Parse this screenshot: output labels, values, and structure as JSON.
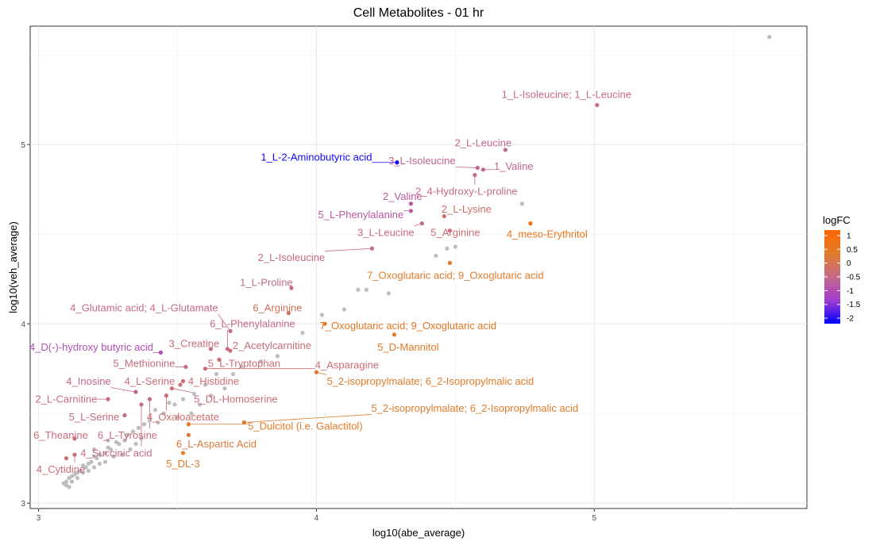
{
  "chart_data": {
    "type": "scatter",
    "title": "Cell Metabolites - 01 hr",
    "xlabel": "log10(abe_average)",
    "ylabel": "log10(veh_average)",
    "xlim": [
      2.97,
      5.765
    ],
    "ylim": [
      2.97,
      5.66
    ],
    "x_ticks": [
      3,
      4,
      5
    ],
    "y_ticks": [
      3,
      4,
      5
    ],
    "grid": true,
    "legend": {
      "title": "logFC",
      "position": "right",
      "range": [
        -2.2,
        1.2
      ],
      "ticks": [
        1,
        0.5,
        0,
        -0.5,
        -1,
        -1.5,
        -2
      ],
      "tick_labels": [
        "1",
        "0.5",
        "0",
        "-0.5",
        "-1",
        "-1.5",
        "-2"
      ],
      "colors": [
        "#0000ff",
        "#a23bd0",
        "#c46a8a",
        "#e07c2a",
        "#ff6600"
      ]
    },
    "labeled_points": [
      {
        "label": "1_L-Isoleucine; 1_L-Leucine",
        "x": 5.01,
        "y": 5.22,
        "logFC": -0.45,
        "lx": 4.9,
        "ly": 5.28
      },
      {
        "label": "2_L-Leucine",
        "x": 4.68,
        "y": 4.97,
        "logFC": -0.55,
        "lx": 4.6,
        "ly": 5.01
      },
      {
        "label": "1_L-2-Aminobutyric acid",
        "x": 4.29,
        "y": 4.9,
        "logFC": -2.1,
        "lx": 4.0,
        "ly": 4.93
      },
      {
        "label": "3_L-Isoleucine",
        "x": 4.58,
        "y": 4.87,
        "logFC": -0.6,
        "lx": 4.38,
        "ly": 4.91
      },
      {
        "label": "1_Valine",
        "x": 4.6,
        "y": 4.86,
        "logFC": -0.55,
        "lx": 4.71,
        "ly": 4.88
      },
      {
        "label": "2_4-Hydroxy-L-proline",
        "x": 4.57,
        "y": 4.83,
        "logFC": -0.5,
        "lx": 4.54,
        "ly": 4.74
      },
      {
        "label": "2_Valine",
        "x": 4.34,
        "y": 4.67,
        "logFC": -0.8,
        "lx": 4.31,
        "ly": 4.71
      },
      {
        "label": "5_L-Phenylalanine",
        "x": 4.34,
        "y": 4.63,
        "logFC": -0.8,
        "lx": 4.16,
        "ly": 4.61
      },
      {
        "label": "2_L-Lysine",
        "x": 4.46,
        "y": 4.6,
        "logFC": -0.2,
        "lx": 4.54,
        "ly": 4.64
      },
      {
        "label": "4_meso-Erythritol",
        "x": 4.77,
        "y": 4.56,
        "logFC": 0.7,
        "lx": 4.83,
        "ly": 4.5
      },
      {
        "label": "3_L-Leucine",
        "x": 4.38,
        "y": 4.56,
        "logFC": -0.4,
        "lx": 4.25,
        "ly": 4.51
      },
      {
        "label": "5_Arginine",
        "x": 4.48,
        "y": 4.52,
        "logFC": -0.3,
        "lx": 4.5,
        "ly": 4.51
      },
      {
        "label": "2_L-Isoleucine",
        "x": 4.2,
        "y": 4.42,
        "logFC": -0.4,
        "lx": 3.91,
        "ly": 4.37
      },
      {
        "label": "7_Oxoglutaric acid; 9_Oxoglutaric acid",
        "x": 4.48,
        "y": 4.34,
        "logFC": 0.4,
        "lx": 4.5,
        "ly": 4.27
      },
      {
        "label": "1_L-Proline",
        "x": 3.91,
        "y": 4.2,
        "logFC": -0.5,
        "lx": 3.82,
        "ly": 4.23
      },
      {
        "label": "4_Glutamic acid; 4_L-Glutamate",
        "x": 3.69,
        "y": 3.96,
        "logFC": -0.45,
        "lx": 3.38,
        "ly": 4.09
      },
      {
        "label": "6_Arginine",
        "x": 3.9,
        "y": 4.06,
        "logFC": -0.1,
        "lx": 3.86,
        "ly": 4.09
      },
      {
        "label": "6_L-Phenylalanine",
        "x": 3.68,
        "y": 3.86,
        "logFC": -0.45,
        "lx": 3.77,
        "ly": 4.0
      },
      {
        "label": "7_Oxoglutaric acid; 9_Oxoglutaric acid",
        "x": 4.03,
        "y": 4.0,
        "logFC": 0.5,
        "lx": 4.33,
        "ly": 3.99
      },
      {
        "label": "5_D-Mannitol",
        "x": 4.28,
        "y": 3.94,
        "logFC": 0.4,
        "lx": 4.33,
        "ly": 3.87
      },
      {
        "label": "4_D(-)-hydroxy butyric acid",
        "x": 3.44,
        "y": 3.84,
        "logFC": -1.0,
        "lx": 3.19,
        "ly": 3.87
      },
      {
        "label": "3_Creatine",
        "x": 3.62,
        "y": 3.86,
        "logFC": -0.35,
        "lx": 3.56,
        "ly": 3.89
      },
      {
        "label": "2_Acetylcarnitine",
        "x": 3.69,
        "y": 3.85,
        "logFC": -0.35,
        "lx": 3.84,
        "ly": 3.88
      },
      {
        "label": "5_Methionine",
        "x": 3.53,
        "y": 3.76,
        "logFC": -0.4,
        "lx": 3.38,
        "ly": 3.78
      },
      {
        "label": "5_L-Tryptophan",
        "x": 3.65,
        "y": 3.8,
        "logFC": -0.3,
        "lx": 3.74,
        "ly": 3.78
      },
      {
        "label": "4_Asparagine",
        "x": 3.6,
        "y": 3.75,
        "logFC": -0.3,
        "lx": 4.11,
        "ly": 3.77
      },
      {
        "label": "5_2-isopropylmalate; 6_2-Isopropylmalic acid",
        "x": 4.0,
        "y": 3.73,
        "logFC": 0.35,
        "lx": 4.41,
        "ly": 3.68
      },
      {
        "label": "4_Inosine",
        "x": 3.35,
        "y": 3.62,
        "logFC": -0.6,
        "lx": 3.18,
        "ly": 3.68
      },
      {
        "label": "4_L-Serine",
        "x": 3.51,
        "y": 3.66,
        "logFC": -0.35,
        "lx": 3.4,
        "ly": 3.68
      },
      {
        "label": "4_Histidine",
        "x": 3.52,
        "y": 3.68,
        "logFC": -0.3,
        "lx": 3.63,
        "ly": 3.68
      },
      {
        "label": "2_L-Carnitine",
        "x": 3.25,
        "y": 3.58,
        "logFC": -0.4,
        "lx": 3.1,
        "ly": 3.58
      },
      {
        "label": "5_DL-Homoserine",
        "x": 3.48,
        "y": 3.64,
        "logFC": -0.35,
        "lx": 3.71,
        "ly": 3.58
      },
      {
        "label": "5_2-isopropylmalate; 6_2-Isopropylmalic acid",
        "x": 3.74,
        "y": 3.45,
        "logFC": 0.35,
        "lx": 4.57,
        "ly": 3.53
      },
      {
        "label": "5_L-Serine",
        "x": 3.31,
        "y": 3.49,
        "logFC": -0.4,
        "lx": 3.2,
        "ly": 3.48
      },
      {
        "label": "4_Oxaloacetate",
        "x": 3.46,
        "y": 3.6,
        "logFC": -0.25,
        "lx": 3.52,
        "ly": 3.48
      },
      {
        "label": "5_Dulcitol (i.e. Galactitol)",
        "x": 3.54,
        "y": 3.44,
        "logFC": 0.4,
        "lx": 3.96,
        "ly": 3.43
      },
      {
        "label": "6_Theanine",
        "x": 3.13,
        "y": 3.36,
        "logFC": -0.35,
        "lx": 3.08,
        "ly": 3.38
      },
      {
        "label": "6_L-Tyrosine",
        "x": 3.4,
        "y": 3.58,
        "logFC": -0.4,
        "lx": 3.32,
        "ly": 3.38
      },
      {
        "label": "6_L-Aspartic Acid",
        "x": 3.54,
        "y": 3.38,
        "logFC": 0.2,
        "lx": 3.64,
        "ly": 3.33
      },
      {
        "label": "4_Succinic acid",
        "x": 3.37,
        "y": 3.55,
        "logFC": -0.45,
        "lx": 3.28,
        "ly": 3.28
      },
      {
        "label": "5_DL-3",
        "x": 3.52,
        "y": 3.28,
        "logFC": 0.35,
        "lx": 3.52,
        "ly": 3.22
      },
      {
        "label": "4_Cytidine",
        "x": 3.13,
        "y": 3.27,
        "logFC": -0.35,
        "lx": 3.08,
        "ly": 3.19
      },
      {
        "label": "",
        "x": 3.1,
        "y": 3.25,
        "logFC": -0.3
      }
    ],
    "background_points": [
      [
        5.63,
        5.6
      ],
      [
        4.74,
        4.67
      ],
      [
        4.5,
        4.43
      ],
      [
        4.47,
        4.42
      ],
      [
        4.43,
        4.38
      ],
      [
        4.18,
        4.19
      ],
      [
        4.15,
        4.19
      ],
      [
        4.26,
        4.17
      ],
      [
        4.1,
        4.08
      ],
      [
        4.02,
        4.05
      ],
      [
        3.95,
        3.95
      ],
      [
        3.86,
        3.82
      ],
      [
        3.8,
        3.79
      ],
      [
        3.73,
        3.76
      ],
      [
        3.7,
        3.72
      ],
      [
        3.64,
        3.72
      ],
      [
        3.6,
        3.66
      ],
      [
        3.56,
        3.61
      ],
      [
        3.52,
        3.58
      ],
      [
        3.49,
        3.55
      ],
      [
        3.47,
        3.56
      ],
      [
        3.45,
        3.5
      ],
      [
        3.42,
        3.52
      ],
      [
        3.4,
        3.46
      ],
      [
        3.38,
        3.44
      ],
      [
        3.36,
        3.42
      ],
      [
        3.34,
        3.4
      ],
      [
        3.32,
        3.38
      ],
      [
        3.31,
        3.35
      ],
      [
        3.29,
        3.33
      ],
      [
        3.28,
        3.34
      ],
      [
        3.26,
        3.3
      ],
      [
        3.25,
        3.31
      ],
      [
        3.24,
        3.28
      ],
      [
        3.22,
        3.27
      ],
      [
        3.21,
        3.25
      ],
      [
        3.2,
        3.26
      ],
      [
        3.19,
        3.23
      ],
      [
        3.18,
        3.22
      ],
      [
        3.17,
        3.2
      ],
      [
        3.16,
        3.21
      ],
      [
        3.15,
        3.18
      ],
      [
        3.14,
        3.17
      ],
      [
        3.13,
        3.16
      ],
      [
        3.12,
        3.15
      ],
      [
        3.11,
        3.14
      ],
      [
        3.1,
        3.12
      ],
      [
        3.1,
        3.1
      ],
      [
        3.09,
        3.11
      ],
      [
        3.11,
        3.09
      ],
      [
        3.12,
        3.12
      ],
      [
        3.14,
        3.14
      ],
      [
        3.16,
        3.17
      ],
      [
        3.18,
        3.18
      ],
      [
        3.2,
        3.2
      ],
      [
        3.22,
        3.22
      ],
      [
        3.24,
        3.23
      ],
      [
        3.27,
        3.26
      ],
      [
        3.3,
        3.27
      ],
      [
        3.33,
        3.3
      ],
      [
        3.35,
        3.33
      ],
      [
        3.37,
        3.36
      ],
      [
        3.43,
        3.45
      ],
      [
        3.5,
        3.48
      ],
      [
        3.55,
        3.5
      ],
      [
        3.58,
        3.55
      ],
      [
        3.62,
        3.6
      ],
      [
        3.67,
        3.64
      ],
      [
        3.2,
        3.3
      ],
      [
        3.25,
        3.35
      ]
    ]
  }
}
